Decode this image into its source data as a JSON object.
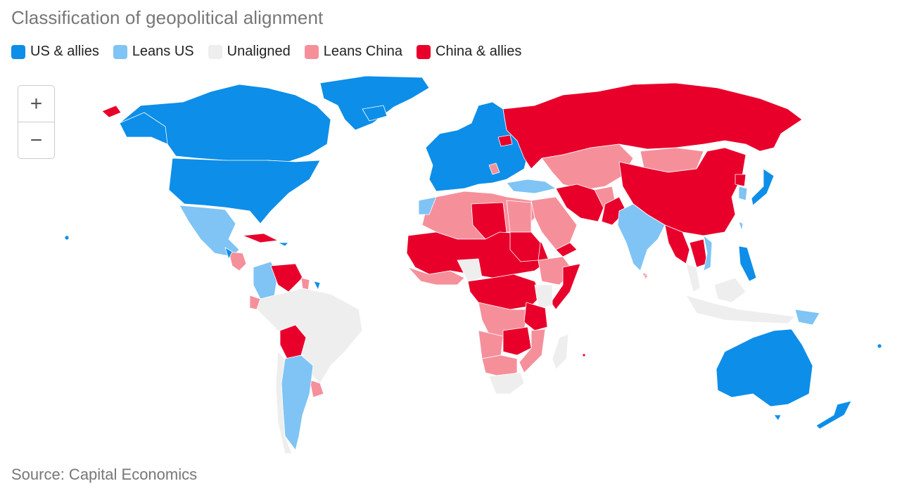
{
  "title": "Classification of geopolitical alignment",
  "legend": [
    {
      "label": "US & allies",
      "color": "#0d8ee8"
    },
    {
      "label": "Leans US",
      "color": "#7fc4f4"
    },
    {
      "label": "Unaligned",
      "color": "#eeeeee"
    },
    {
      "label": "Leans China",
      "color": "#f5909b"
    },
    {
      "label": "China & allies",
      "color": "#e8002b"
    }
  ],
  "zoom": {
    "in_label": "+",
    "out_label": "−"
  },
  "source": "Source: Capital Economics",
  "colors": {
    "us_allies": "#0d8ee8",
    "leans_us": "#7fc4f4",
    "unaligned": "#eeeeee",
    "leans_china": "#f5909b",
    "china_allies": "#e8002b"
  }
}
